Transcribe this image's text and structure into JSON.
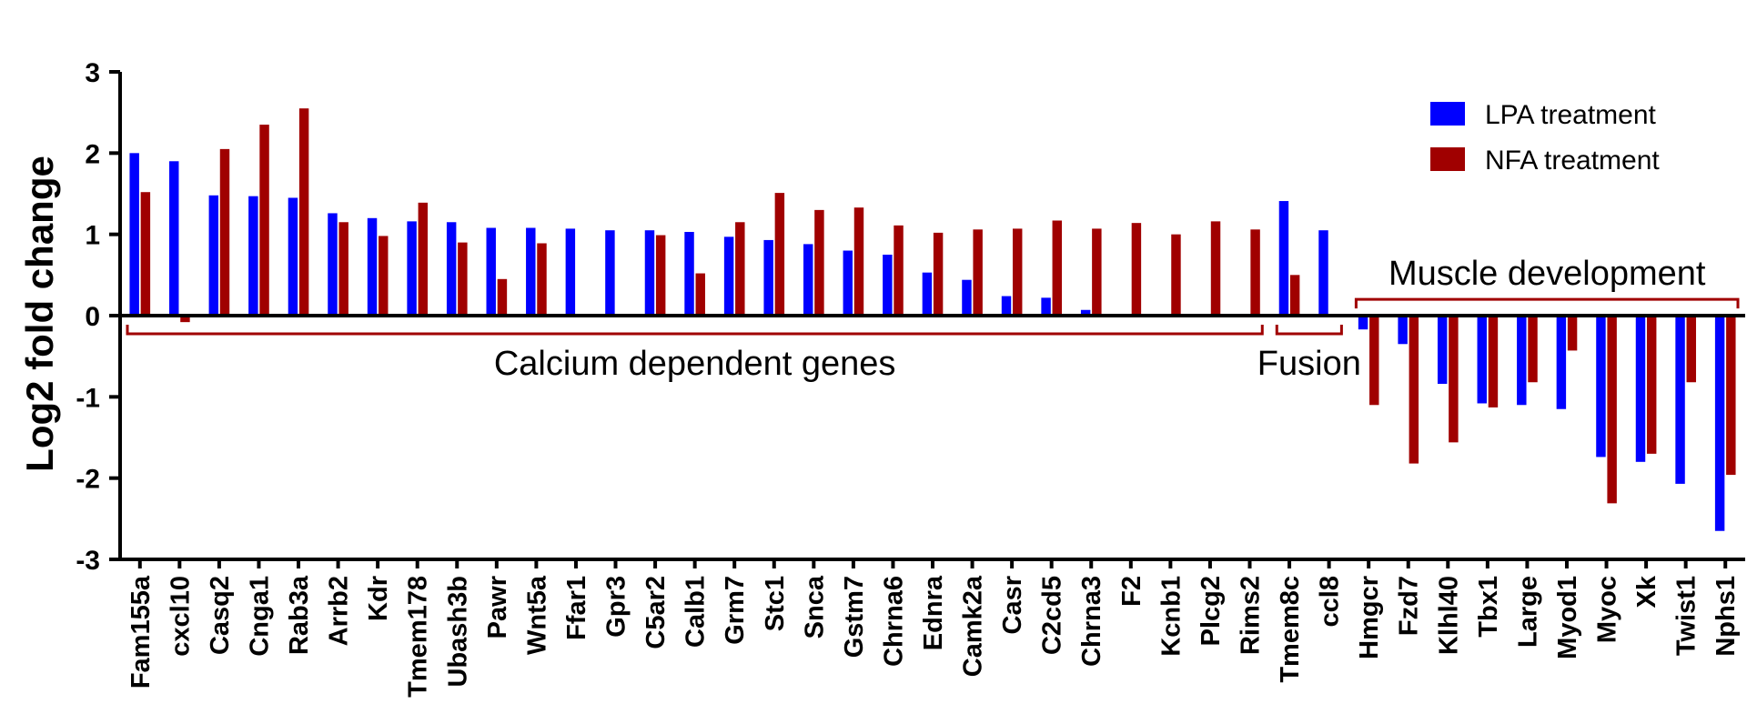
{
  "chart_data": {
    "type": "bar",
    "ylabel": "Log2 fold change",
    "ylim": [
      -3,
      3
    ],
    "yticks": [
      3,
      2,
      1,
      0,
      -1,
      -2,
      -3
    ],
    "grid": false,
    "legend_position": "top-right",
    "categories": [
      "Fam155a",
      "cxcl10",
      "Casq2",
      "Cnga1",
      "Rab3a",
      "Arrb2",
      "Kdr",
      "Tmem178",
      "Ubash3b",
      "Pawr",
      "Wnt5a",
      "Ffar1",
      "Gpr3",
      "C5ar2",
      "Calb1",
      "Grm7",
      "Stc1",
      "Snca",
      "Gstm7",
      "Chrna6",
      "Ednra",
      "Camk2a",
      "Casr",
      "C2cd5",
      "Chrna3",
      "F2",
      "Kcnb1",
      "Plcg2",
      "Rims2",
      "Tmem8c",
      "ccl8",
      "Hmgcr",
      "Fzd7",
      "Klhl40",
      "Tbx1",
      "Large",
      "Myod1",
      "Myoc",
      "Xk",
      "Twist1",
      "Nphs1"
    ],
    "series": [
      {
        "name": "LPA treatment",
        "color": "#0000ff",
        "values": [
          2.0,
          1.9,
          1.48,
          1.47,
          1.45,
          1.26,
          1.2,
          1.16,
          1.15,
          1.08,
          1.08,
          1.07,
          1.05,
          1.05,
          1.03,
          0.97,
          0.93,
          0.88,
          0.8,
          0.75,
          0.53,
          0.44,
          0.24,
          0.22,
          0.07,
          null,
          null,
          null,
          null,
          1.41,
          1.05,
          -0.17,
          -0.35,
          -0.84,
          -1.08,
          -1.1,
          -1.15,
          -1.74,
          -1.8,
          -2.07,
          -2.65
        ]
      },
      {
        "name": "NFA treatment",
        "color": "#a00000",
        "values": [
          1.52,
          -0.08,
          2.05,
          2.35,
          2.55,
          1.15,
          0.98,
          1.39,
          0.9,
          0.45,
          0.89,
          null,
          null,
          0.99,
          0.52,
          1.15,
          1.51,
          1.3,
          1.33,
          1.11,
          1.02,
          1.06,
          1.07,
          1.17,
          1.07,
          1.14,
          1.0,
          1.16,
          1.06,
          0.5,
          null,
          -1.1,
          -1.82,
          -1.56,
          -1.13,
          -0.82,
          -0.43,
          -2.31,
          -1.7,
          -0.82,
          -1.96
        ]
      }
    ],
    "annotations": [
      {
        "text": "Calcium dependent genes",
        "from": "Fam155a",
        "to": "Rims2",
        "side": "below"
      },
      {
        "text": "Fusion",
        "from": "Tmem8c",
        "to": "ccl8",
        "side": "below"
      },
      {
        "text": "Muscle development",
        "from": "Hmgcr",
        "to": "Nphs1",
        "side": "above"
      }
    ]
  }
}
